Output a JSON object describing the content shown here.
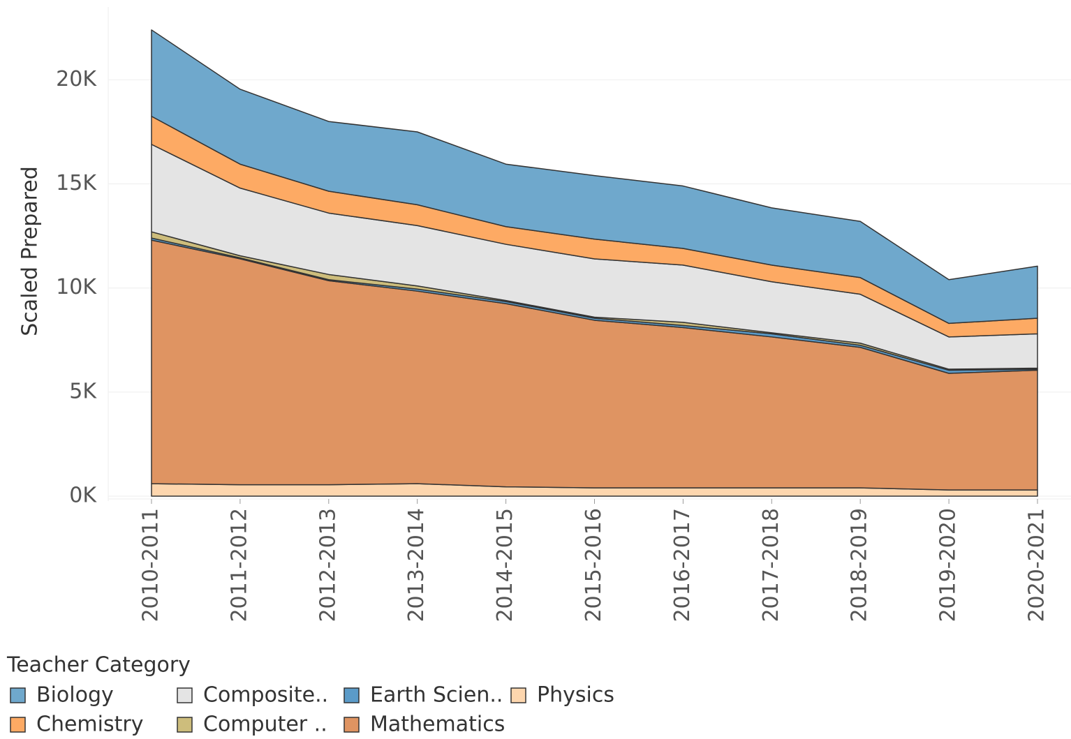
{
  "chart_data": {
    "type": "stacked_area",
    "y_label": "Scaled Prepared",
    "legend_title": "Teacher Category",
    "categories": [
      "2010-2011",
      "2011-2012",
      "2012-2013",
      "2013-2014",
      "2014-2015",
      "2015-2016",
      "2016-2017",
      "2017-2018",
      "2018-2019",
      "2019-2020",
      "2020-2021"
    ],
    "series": [
      {
        "name": "Biology",
        "color": "#6fa8cc",
        "values": [
          4150,
          3600,
          3350,
          3500,
          3000,
          3050,
          3000,
          2750,
          2700,
          2100,
          2500
        ]
      },
      {
        "name": "Chemistry",
        "color": "#fdaa64",
        "values": [
          1350,
          1150,
          1050,
          1000,
          850,
          950,
          800,
          800,
          800,
          650,
          750
        ]
      },
      {
        "name": "Composite..",
        "color": "#e4e4e4",
        "values": [
          4200,
          3250,
          2950,
          2900,
          2700,
          2800,
          2750,
          2450,
          2350,
          1550,
          1650
        ]
      },
      {
        "name": "Computer ..",
        "color": "#cdbd7c",
        "values": [
          300,
          100,
          250,
          150,
          50,
          50,
          150,
          50,
          100,
          50,
          50
        ]
      },
      {
        "name": "Earth Scien..",
        "color": "#5b9bc8",
        "values": [
          100,
          50,
          50,
          100,
          100,
          100,
          100,
          150,
          100,
          150,
          50
        ]
      },
      {
        "name": "Mathematics",
        "color": "#df9462",
        "values": [
          11700,
          10850,
          9800,
          9250,
          8800,
          8050,
          7700,
          7250,
          6750,
          5600,
          5750
        ]
      },
      {
        "name": "Physics",
        "color": "#fdd6ae",
        "values": [
          600,
          550,
          550,
          600,
          450,
          400,
          400,
          400,
          400,
          300,
          300
        ]
      }
    ],
    "ylim": [
      -100,
      23500
    ],
    "yticks": [
      {
        "value": 0,
        "label": "0K"
      },
      {
        "value": 5000,
        "label": "5K"
      },
      {
        "value": 10000,
        "label": "10K"
      },
      {
        "value": 15000,
        "label": "15K"
      },
      {
        "value": 20000,
        "label": "20K"
      }
    ],
    "grid": true
  }
}
